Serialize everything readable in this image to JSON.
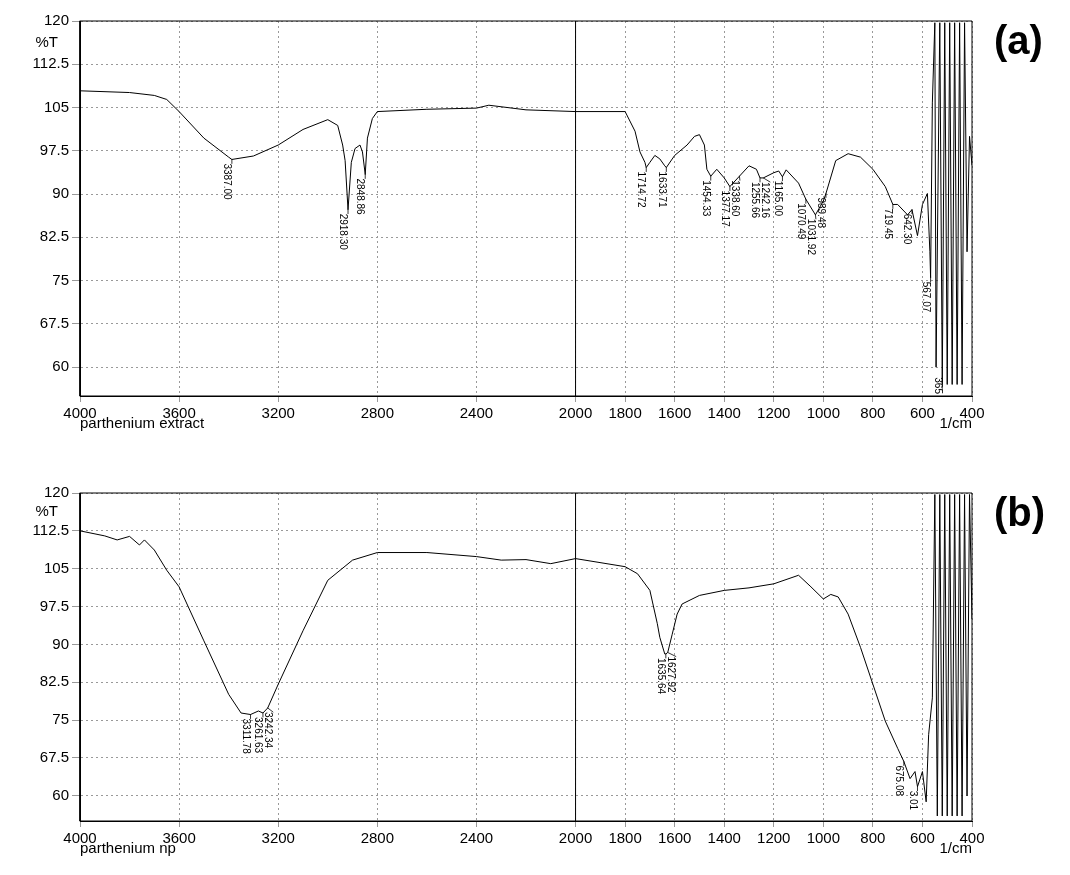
{
  "chart_data": [
    {
      "type": "line",
      "title": "(a)",
      "xlabel": "1/cm",
      "ylabel": "%T",
      "annotations": [
        "parthenium extract",
        {
          "text": "3387.00",
          "x": 3387,
          "y": 96
        },
        {
          "text": "2918.30",
          "x": 2918.3,
          "y": 87.3
        },
        {
          "text": "2848.86",
          "x": 2848.86,
          "y": 93.4
        },
        {
          "text": "1714.72",
          "x": 1714.72,
          "y": 94.6
        },
        {
          "text": "1633.71",
          "x": 1633.71,
          "y": 94.6
        },
        {
          "text": "1454.33",
          "x": 1454.33,
          "y": 93.1
        },
        {
          "text": "1377.17",
          "x": 1377.17,
          "y": 91.3
        },
        {
          "text": "1338.60",
          "x": 1338.6,
          "y": 93.1
        },
        {
          "text": "1255.66",
          "x": 1255.66,
          "y": 92.8
        },
        {
          "text": "1242.16",
          "x": 1242.16,
          "y": 92.8
        },
        {
          "text": "1165.00",
          "x": 1165,
          "y": 93
        },
        {
          "text": "1070.49",
          "x": 1070.49,
          "y": 89.1
        },
        {
          "text": "1031.92",
          "x": 1031.92,
          "y": 86.4
        },
        {
          "text": "989.48",
          "x": 989.48,
          "y": 90.1
        },
        {
          "text": "719.45",
          "x": 719.45,
          "y": 88.2
        },
        {
          "text": "642.30",
          "x": 642.3,
          "y": 87.3
        },
        {
          "text": "567.07",
          "x": 567.07,
          "y": 75.5
        },
        {
          "text": "365",
          "x": 520,
          "y": 57
        }
      ],
      "series": [
        {
          "color": "#000000",
          "x": [
            4000,
            3800,
            3700,
            3650,
            3600,
            3500,
            3400,
            3387,
            3300,
            3200,
            3100,
            3000,
            2960,
            2940,
            2930,
            2918.3,
            2905,
            2890,
            2870,
            2860,
            2848.86,
            2840,
            2820,
            2800,
            2600,
            2400,
            2350,
            2200,
            2000,
            1800,
            1760,
            1740,
            1720,
            1714.72,
            1700,
            1680,
            1660,
            1640,
            1633.71,
            1600,
            1550,
            1520,
            1500,
            1480,
            1470,
            1454.33,
            1430,
            1400,
            1377.17,
            1338.6,
            1300,
            1270,
            1255.66,
            1242.16,
            1200,
            1180,
            1165,
            1150,
            1100,
            1070.49,
            1031.92,
            1000,
            989.48,
            950,
            900,
            850,
            800,
            750,
            719.45,
            700,
            660,
            642.3,
            620,
            600,
            580,
            570,
            567.07,
            560,
            550,
            545,
            530,
            520,
            510,
            500,
            490,
            480,
            470,
            460,
            450,
            440,
            430,
            420,
            410,
            400
          ],
          "values": [
            107.9,
            107.6,
            107.1,
            106.4,
            104.3,
            99.7,
            96.4,
            96,
            96.6,
            98.5,
            101.2,
            102.9,
            101.9,
            98.5,
            95.8,
            87.3,
            95.5,
            97.9,
            98.5,
            97.3,
            93.4,
            99.7,
            103.1,
            104.3,
            104.7,
            104.9,
            105.4,
            104.6,
            104.3,
            104.3,
            100.9,
            97.3,
            95.5,
            94.6,
            95.5,
            96.7,
            96.1,
            94.9,
            94.6,
            96.7,
            98.5,
            100,
            100.3,
            98.5,
            94.3,
            93.1,
            94.3,
            92.8,
            91.3,
            93.1,
            94.9,
            94.3,
            92.8,
            92.8,
            93.7,
            94,
            93,
            94.2,
            91.9,
            89.1,
            86.4,
            88.8,
            90.1,
            95.8,
            97,
            96.4,
            94.3,
            91.3,
            88.2,
            88.2,
            86.4,
            87.3,
            82.8,
            88.2,
            90.1,
            80,
            75.5,
            105.8,
            119.7,
            60,
            119.7,
            57,
            119.7,
            57,
            119.7,
            57,
            119.7,
            57,
            119.7,
            57,
            119.7,
            80,
            100,
            95
          ]
        }
      ],
      "xlim": [
        4000,
        400
      ],
      "xticks": [
        4000,
        3600,
        3200,
        2800,
        2400,
        2000,
        1800,
        1600,
        1400,
        1200,
        1000,
        800,
        600,
        400
      ],
      "ylim": [
        55,
        120
      ],
      "yticks": [
        60,
        67.5,
        75,
        82.5,
        90,
        97.5,
        105,
        112.5,
        120
      ],
      "grid": true,
      "ref_lines": [
        {
          "axis": "x",
          "value": 2000,
          "color": "#000000"
        }
      ]
    },
    {
      "type": "line",
      "title": "(b)",
      "xlabel": "1/cm",
      "ylabel": "%T",
      "annotations": [
        "parthenium np",
        {
          "text": "3311.78",
          "x": 3311.78,
          "y": 76.1
        },
        {
          "text": "3261.63",
          "x": 3261.63,
          "y": 76.4
        },
        {
          "text": "3242.34",
          "x": 3242.34,
          "y": 77.4
        },
        {
          "text": "1635.64",
          "x": 1635.64,
          "y": 88.1
        },
        {
          "text": "1627.92",
          "x": 1627.92,
          "y": 88.4
        },
        {
          "text": "675.08",
          "x": 675.08,
          "y": 66.8
        },
        {
          "text": "3.01",
          "x": 620,
          "y": 61.8
        }
      ],
      "series": [
        {
          "color": "#000000",
          "x": [
            4000,
            3900,
            3850,
            3800,
            3760,
            3740,
            3700,
            3650,
            3600,
            3500,
            3400,
            3350,
            3311.78,
            3280,
            3261.63,
            3242.34,
            3200,
            3100,
            3000,
            2900,
            2800,
            2600,
            2400,
            2300,
            2200,
            2100,
            2000,
            1800,
            1750,
            1700,
            1670,
            1660,
            1640,
            1635.64,
            1627.92,
            1610,
            1590,
            1570,
            1500,
            1400,
            1300,
            1200,
            1100,
            1050,
            1000,
            970,
            940,
            900,
            850,
            800,
            750,
            700,
            675.08,
            650,
            630,
            620,
            600,
            585,
            575,
            560,
            550,
            540,
            530,
            520,
            510,
            500,
            490,
            480,
            470,
            460,
            450,
            440,
            430,
            420,
            410,
            400
          ],
          "values": [
            112.5,
            111.5,
            110.7,
            111.4,
            109.7,
            110.7,
            108.7,
            104.7,
            101.4,
            90.7,
            80.1,
            76.4,
            76.1,
            76.8,
            76.4,
            77.4,
            82.1,
            92.7,
            102.7,
            106.7,
            108.2,
            108.2,
            107.4,
            106.7,
            106.8,
            106,
            107,
            105.4,
            104,
            100.7,
            94.1,
            91.4,
            88.1,
            88.1,
            88.4,
            92,
            96,
            98,
            99.7,
            100.7,
            101.2,
            102,
            103.7,
            101.4,
            99,
            99.9,
            99.4,
            96,
            89.4,
            82.1,
            74.8,
            69.4,
            66.8,
            63.4,
            64.8,
            61.8,
            64.8,
            58.8,
            72.1,
            79.4,
            119.7,
            56,
            119.7,
            56,
            119.7,
            56,
            119.7,
            56,
            119.7,
            56,
            119.7,
            56,
            119.7,
            60,
            119.7,
            95
          ]
        }
      ],
      "xlim": [
        4000,
        400
      ],
      "xticks": [
        4000,
        3600,
        3200,
        2800,
        2400,
        2000,
        1800,
        1600,
        1400,
        1200,
        1000,
        800,
        600,
        400
      ],
      "ylim": [
        55,
        120
      ],
      "yticks": [
        60,
        67.5,
        75,
        82.5,
        90,
        97.5,
        105,
        112.5,
        120
      ],
      "grid": true,
      "ref_lines": [
        {
          "axis": "x",
          "value": 2000,
          "color": "#000000"
        }
      ]
    }
  ]
}
